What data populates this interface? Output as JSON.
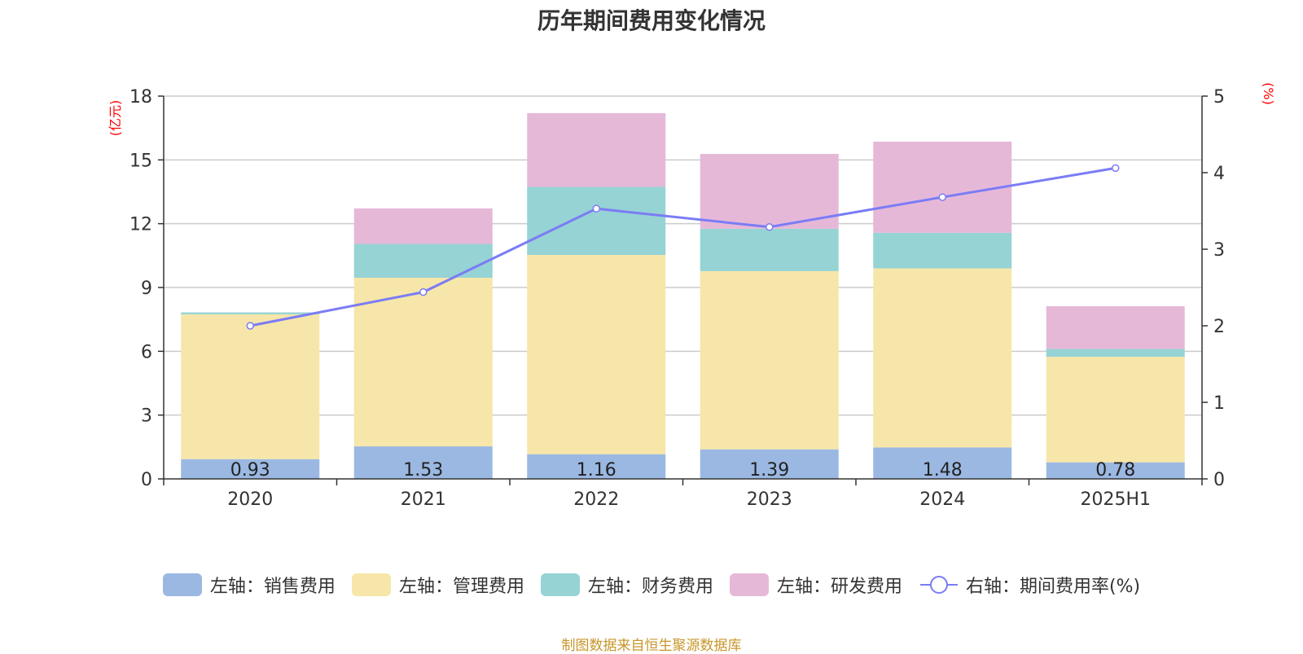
{
  "chart_data": {
    "type": "bar",
    "stacked": true,
    "title": "历年期间费用变化情况",
    "categories": [
      "2020",
      "2021",
      "2022",
      "2023",
      "2024",
      "2025H1"
    ],
    "left_axis": {
      "label": "(亿元)",
      "ylim": [
        0,
        18
      ],
      "ticks": [
        0,
        3,
        6,
        9,
        12,
        15,
        18
      ]
    },
    "right_axis": {
      "label": "(%)",
      "ylim": [
        0,
        5
      ],
      "ticks": [
        0,
        1,
        2,
        3,
        4,
        5
      ]
    },
    "grid": true,
    "legend_position": "bottom",
    "series": [
      {
        "name": "左轴：销售费用",
        "axis": "left",
        "type": "bar",
        "color": "#9bb8e2",
        "values": [
          0.93,
          1.53,
          1.16,
          1.39,
          1.48,
          0.78
        ],
        "show_labels": true
      },
      {
        "name": "左轴：管理费用",
        "axis": "left",
        "type": "bar",
        "color": "#f7e6a9",
        "values": [
          6.81,
          7.93,
          9.37,
          8.38,
          8.42,
          4.96
        ],
        "show_labels": false
      },
      {
        "name": "左轴：财务费用",
        "axis": "left",
        "type": "bar",
        "color": "#96d3d4",
        "values": [
          0.09,
          1.59,
          3.2,
          1.99,
          1.67,
          0.37
        ],
        "show_labels": false
      },
      {
        "name": "左轴：研发费用",
        "axis": "left",
        "type": "bar",
        "color": "#e6b8d8",
        "values": [
          0.0,
          1.67,
          3.47,
          3.52,
          4.29,
          2.01
        ],
        "show_labels": false
      },
      {
        "name": "右轴：期间费用率(%)",
        "axis": "right",
        "type": "line",
        "color": "#7b7cf5",
        "values": [
          2.0,
          2.44,
          3.53,
          3.29,
          3.68,
          4.06
        ]
      }
    ],
    "source": "制图数据来自恒生聚源数据库"
  }
}
